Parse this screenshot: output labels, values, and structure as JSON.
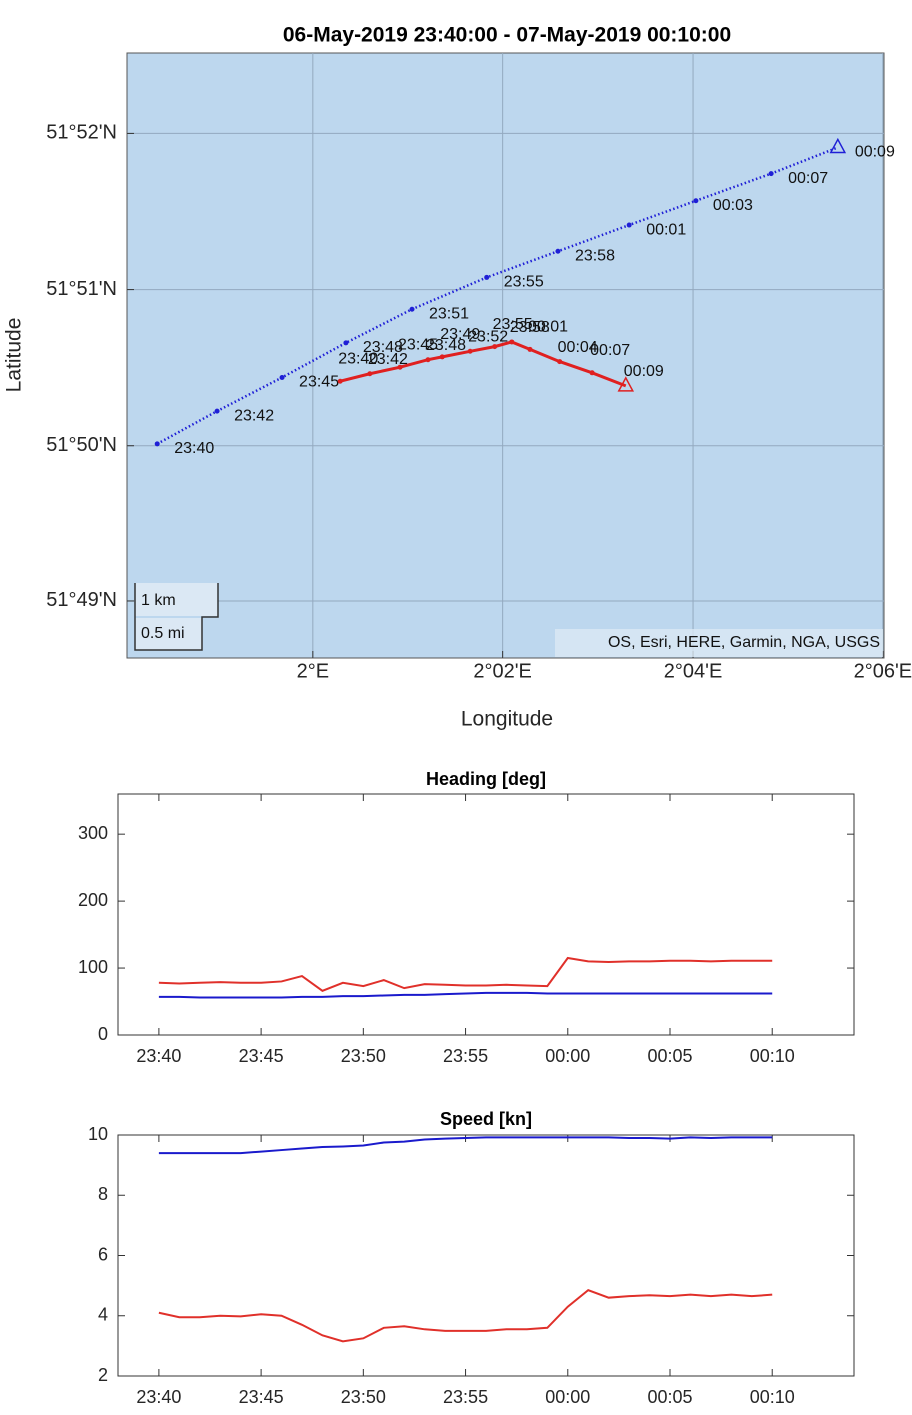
{
  "chart_data": [
    {
      "type": "geo",
      "title": "06-May-2019 23:40:00 - 07-May-2019 00:10:00",
      "xlabel": "Longitude",
      "ylabel": "Latitude",
      "xlim": [
        1.9674,
        2.1002
      ],
      "ylim": [
        51.8106,
        51.8753
      ],
      "xticks": [
        {
          "value": 2,
          "label": "2°E"
        },
        {
          "value": 2.0333,
          "label": "2°02'E"
        },
        {
          "value": 2.0667,
          "label": "2°04'E"
        },
        {
          "value": 2.1,
          "label": "2°06'E"
        }
      ],
      "yticks": [
        {
          "value": 51.8167,
          "label": "51°49'N"
        },
        {
          "value": 51.8333,
          "label": "51°50'N"
        },
        {
          "value": 51.85,
          "label": "51°51'N"
        },
        {
          "value": 51.8667,
          "label": "51°52'N"
        }
      ],
      "grid": true,
      "background": "#bdd7ee",
      "scale_bar": [
        "1 km",
        "0.5 mi"
      ],
      "attribution": "OS, Esri, HERE, Garmin, NGA, USGS",
      "series": [
        {
          "color": "#1f1fd6",
          "style": "dotted",
          "x": [
            1.9727,
            1.9832,
            1.9946,
            2.0058,
            2.0174,
            2.0305,
            2.043,
            2.0555,
            2.0672,
            2.0804,
            2.0921
          ],
          "values": [
            51.8335,
            51.837,
            51.8406,
            51.8443,
            51.8479,
            51.8513,
            51.8541,
            51.8569,
            51.8595,
            51.8624,
            51.8652
          ],
          "labels": [
            "23:40",
            "23:42",
            "23:45",
            "23:48",
            "23:51",
            "23:55",
            "23:58",
            "00:01",
            "00:03",
            "00:07",
            "00:09"
          ]
        },
        {
          "color": "#e02020",
          "style": "solid",
          "x": [
            2.0048,
            2.01,
            2.0153,
            2.0202,
            2.0227,
            2.0276,
            2.0319,
            2.0349,
            2.0381,
            2.0433,
            2.049,
            2.0549
          ],
          "values": [
            51.8402,
            51.841,
            51.8417,
            51.8425,
            51.8428,
            51.8434,
            51.8439,
            51.8444,
            51.8436,
            51.8423,
            51.8411,
            51.8397
          ],
          "labels": [
            "23:40",
            "23:42",
            "23:45",
            "23:48",
            "23:49",
            "23:52",
            "23:55",
            "23:58",
            "00:01",
            "00:04",
            "00:07",
            "00:09"
          ]
        }
      ]
    },
    {
      "type": "line",
      "title": "Heading [deg]",
      "xlim": [
        "23:38",
        "00:14"
      ],
      "xticks": [
        "23:40",
        "23:45",
        "23:50",
        "23:55",
        "00:00",
        "00:05",
        "00:10"
      ],
      "ylim": [
        0,
        360
      ],
      "yticks": [
        0,
        100,
        200,
        300
      ],
      "x": [
        "23:40",
        "23:41",
        "23:42",
        "23:43",
        "23:44",
        "23:45",
        "23:46",
        "23:47",
        "23:48",
        "23:49",
        "23:50",
        "23:51",
        "23:52",
        "23:53",
        "23:54",
        "23:55",
        "23:56",
        "23:57",
        "23:58",
        "23:59",
        "00:00",
        "00:01",
        "00:02",
        "00:03",
        "00:04",
        "00:05",
        "00:06",
        "00:07",
        "00:08",
        "00:09",
        "00:10"
      ],
      "series": [
        {
          "color": "#e0302a",
          "values": [
            78,
            77,
            78,
            79,
            78,
            78,
            80,
            88,
            66,
            78,
            73,
            82,
            70,
            76,
            75,
            74,
            74,
            75,
            74,
            73,
            115,
            110,
            109,
            110,
            110,
            111,
            111,
            110,
            111,
            111,
            111
          ]
        },
        {
          "color": "#1a1acc",
          "values": [
            57,
            57,
            56,
            56,
            56,
            56,
            56,
            57,
            57,
            58,
            58,
            59,
            60,
            60,
            61,
            62,
            63,
            63,
            63,
            62,
            62,
            62,
            62,
            62,
            62,
            62,
            62,
            62,
            62,
            62,
            62
          ]
        }
      ]
    },
    {
      "type": "line",
      "title": "Speed [kn]",
      "xlim": [
        "23:38",
        "00:14"
      ],
      "xticks": [
        "23:40",
        "23:45",
        "23:50",
        "23:55",
        "00:00",
        "00:05",
        "00:10"
      ],
      "ylim": [
        2,
        10
      ],
      "yticks": [
        2,
        4,
        6,
        8,
        10
      ],
      "x": [
        "23:40",
        "23:41",
        "23:42",
        "23:43",
        "23:44",
        "23:45",
        "23:46",
        "23:47",
        "23:48",
        "23:49",
        "23:50",
        "23:51",
        "23:52",
        "23:53",
        "23:54",
        "23:55",
        "23:56",
        "23:57",
        "23:58",
        "23:59",
        "00:00",
        "00:01",
        "00:02",
        "00:03",
        "00:04",
        "00:05",
        "00:06",
        "00:07",
        "00:08",
        "00:09",
        "00:10"
      ],
      "series": [
        {
          "color": "#e0302a",
          "values": [
            4.1,
            3.95,
            3.95,
            4.0,
            3.98,
            4.05,
            4.0,
            3.7,
            3.35,
            3.15,
            3.25,
            3.6,
            3.65,
            3.55,
            3.5,
            3.5,
            3.5,
            3.55,
            3.55,
            3.6,
            4.3,
            4.85,
            4.6,
            4.65,
            4.68,
            4.65,
            4.7,
            4.65,
            4.7,
            4.65,
            4.7
          ]
        },
        {
          "color": "#1a1acc",
          "values": [
            9.4,
            9.4,
            9.4,
            9.4,
            9.4,
            9.45,
            9.5,
            9.55,
            9.6,
            9.62,
            9.65,
            9.75,
            9.78,
            9.85,
            9.88,
            9.9,
            9.92,
            9.92,
            9.92,
            9.92,
            9.92,
            9.92,
            9.92,
            9.9,
            9.9,
            9.88,
            9.92,
            9.9,
            9.92,
            9.92,
            9.92
          ]
        }
      ]
    }
  ]
}
